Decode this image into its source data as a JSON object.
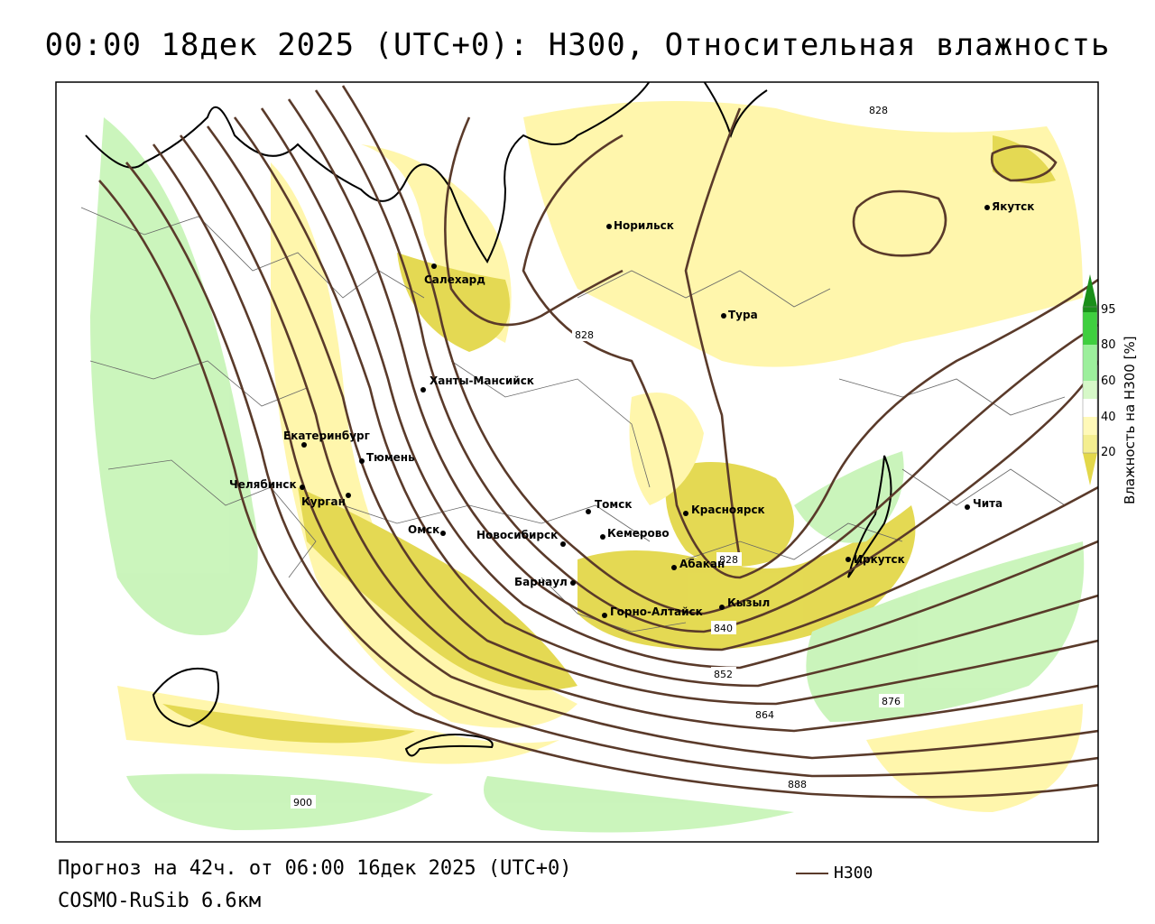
{
  "title": "00:00 18дек 2025 (UTC+0): H300, Относительная влажность",
  "footer": {
    "forecast": "Прогноз на 42ч. от 06:00 16дек 2025 (UTC+0)",
    "model": "COSMO-RuSib 6.6км"
  },
  "legend": {
    "line_label": "H300",
    "line_color": "#5a3a2a"
  },
  "colorbar": {
    "title": "Влажность на H300 [%]",
    "ticks": [
      "95",
      "80",
      "60",
      "40",
      "20"
    ],
    "colors": [
      "#1a8f1a",
      "#3fcf3f",
      "#9cef9c",
      "#d6f8c8",
      "#ffffff",
      "#fff9b8",
      "#f4ee90",
      "#e3d84a"
    ]
  },
  "cities": [
    {
      "name": "Норильск"
    },
    {
      "name": "Якутск"
    },
    {
      "name": "Салехард"
    },
    {
      "name": "Тура"
    },
    {
      "name": "Ханты-Мансийск"
    },
    {
      "name": "Екатеринбург"
    },
    {
      "name": "Тюмень"
    },
    {
      "name": "Челябинск"
    },
    {
      "name": "Курган"
    },
    {
      "name": "Омск"
    },
    {
      "name": "Новосибирск"
    },
    {
      "name": "Томск"
    },
    {
      "name": "Кемерово"
    },
    {
      "name": "Красноярск"
    },
    {
      "name": "Абакан"
    },
    {
      "name": "Барнаул"
    },
    {
      "name": "Горно-Алтайск"
    },
    {
      "name": "Кызыл"
    },
    {
      "name": "Иркутск"
    },
    {
      "name": "Чита"
    }
  ],
  "contour_labels": [
    "828",
    "828",
    "828",
    "840",
    "852",
    "864",
    "876",
    "888",
    "900"
  ],
  "colors": {
    "contour": "#5a3a2a",
    "border": "#555555",
    "coast": "#000000"
  }
}
